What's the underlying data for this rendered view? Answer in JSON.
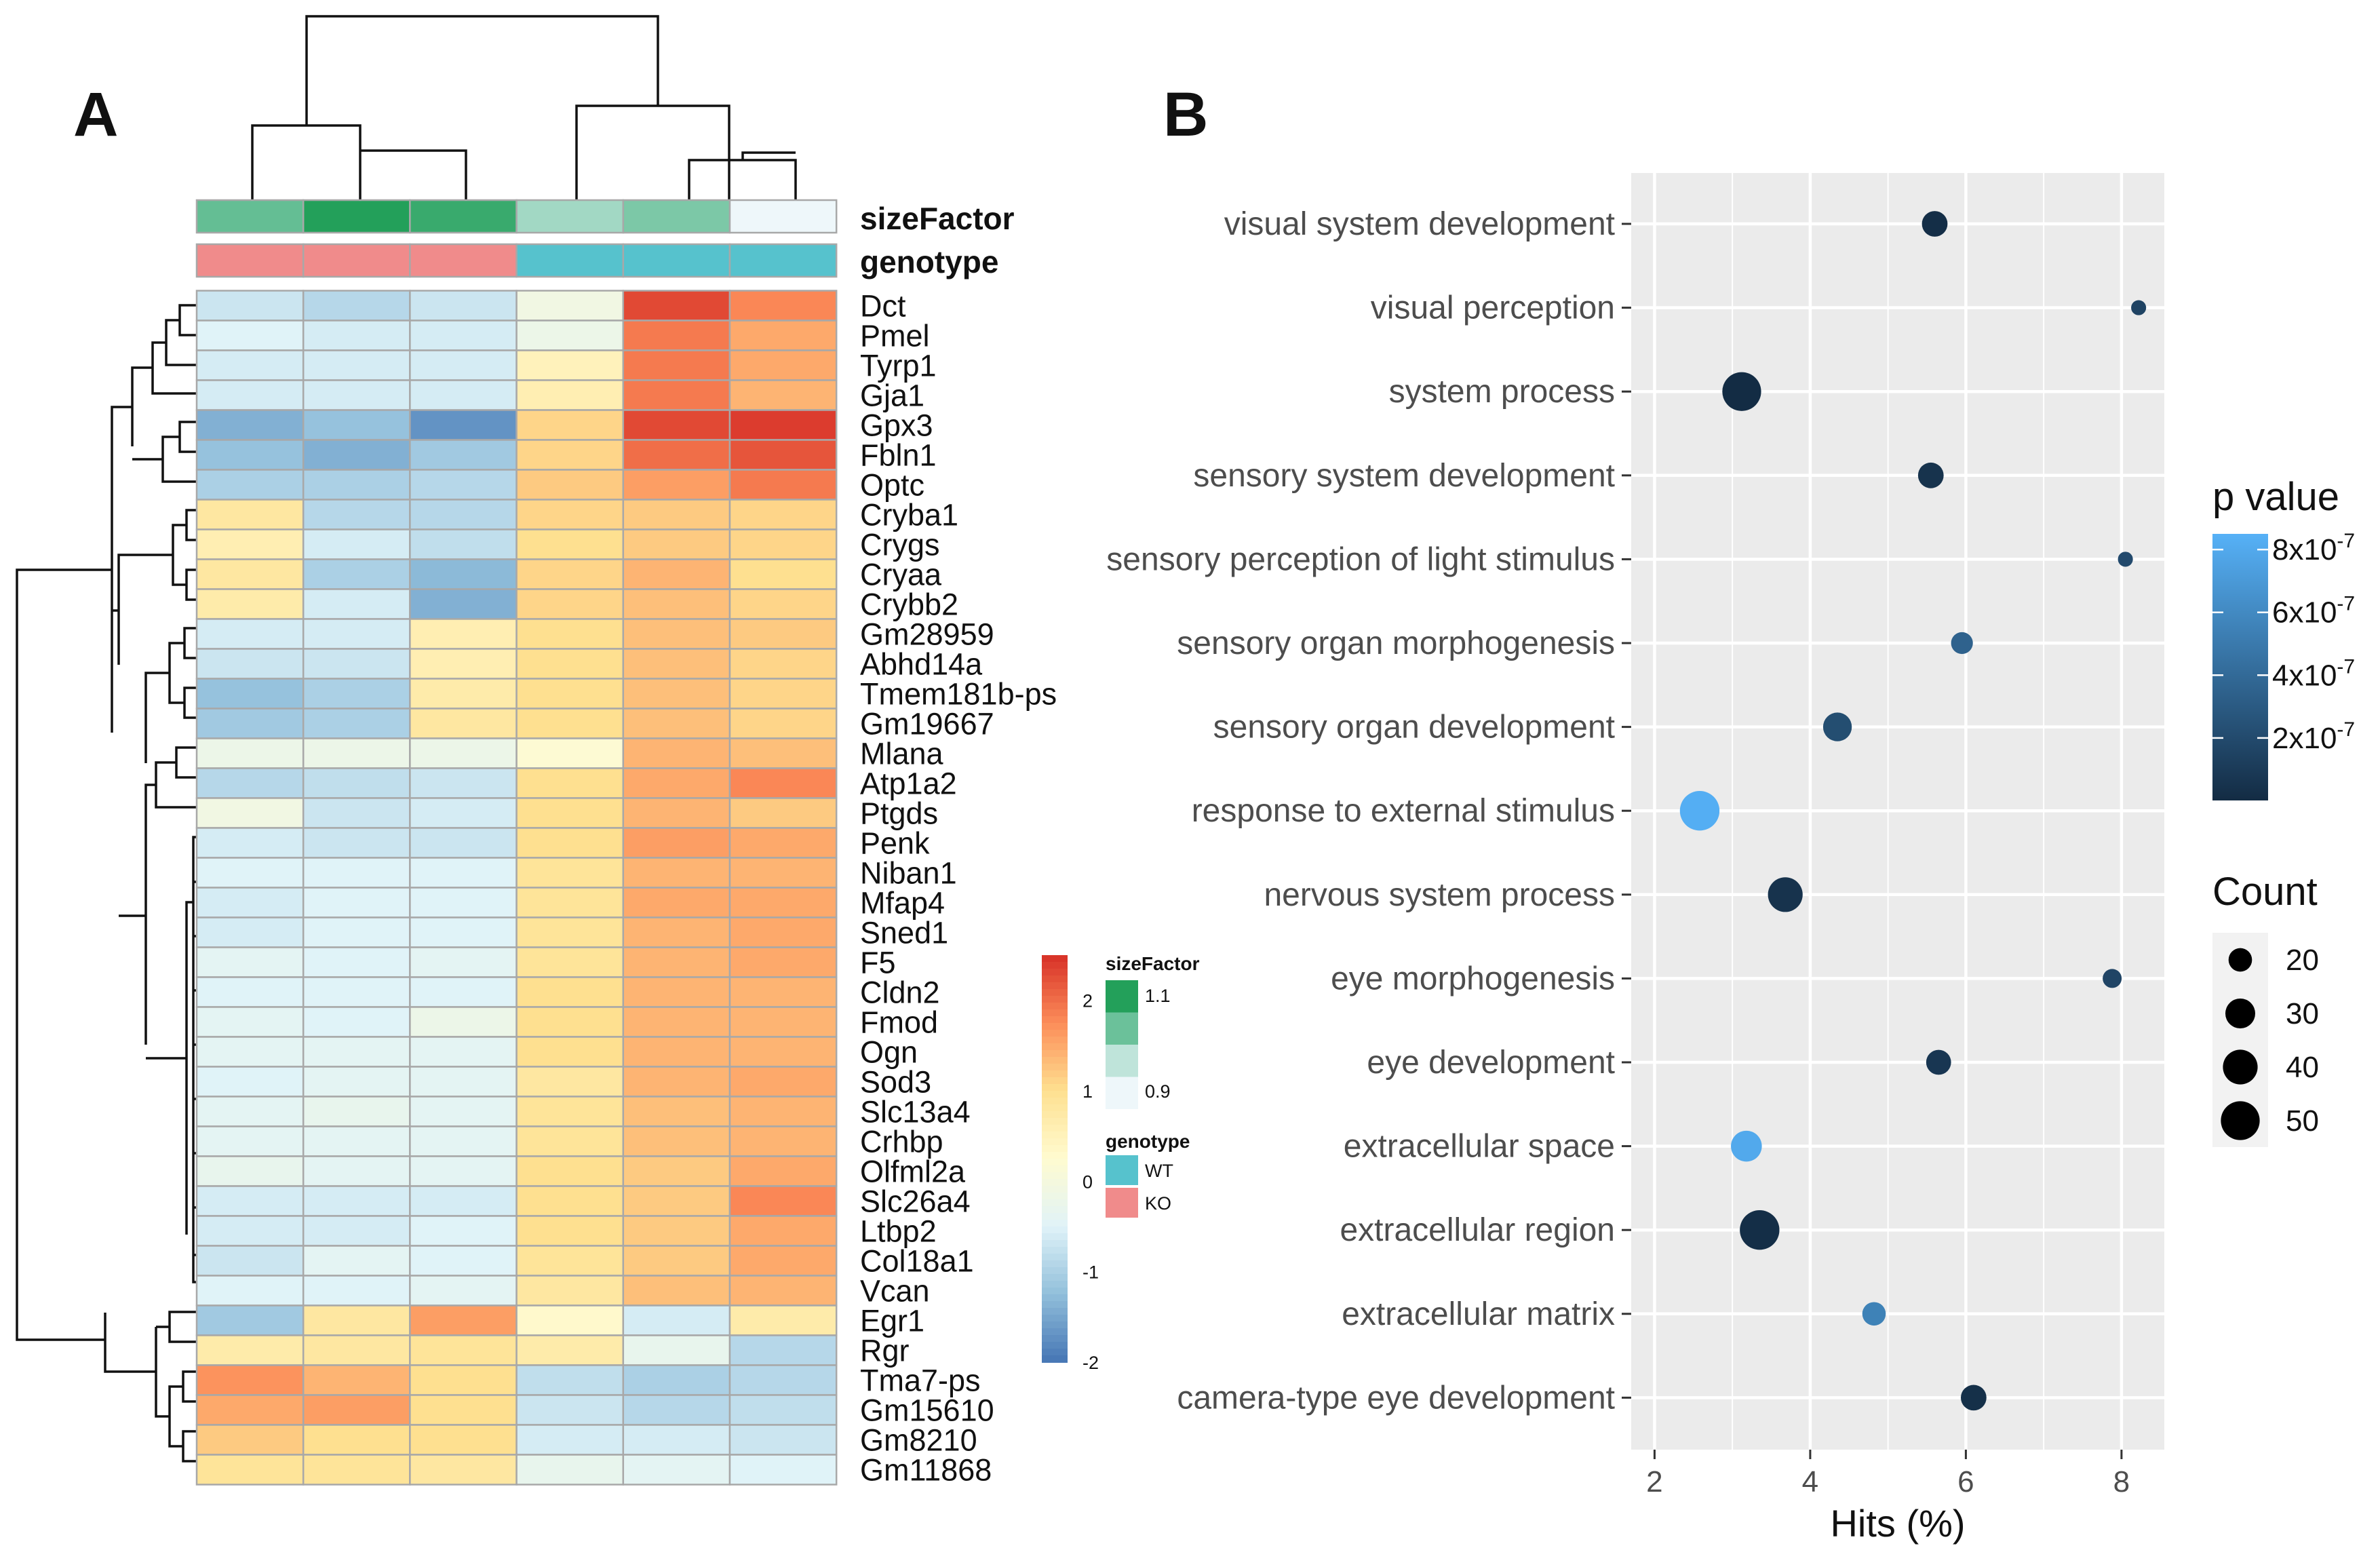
{
  "panels": {
    "a_label": "A",
    "b_label": "B"
  },
  "chart_data": [
    {
      "type": "heatmap",
      "panel": "A",
      "columns": 6,
      "rows": [
        "Dct",
        "Pmel",
        "Tyrp1",
        "Gja1",
        "Gpx3",
        "Fbln1",
        "Optc",
        "Cryba1",
        "Crygs",
        "Cryaa",
        "Crybb2",
        "Gm28959",
        "Abhd14a",
        "Tmem181b-ps",
        "Gm19667",
        "Mlana",
        "Atp1a2",
        "Ptgds",
        "Penk",
        "Niban1",
        "Mfap4",
        "Sned1",
        "F5",
        "Cldn2",
        "Fmod",
        "Ogn",
        "Sod3",
        "Slc13a4",
        "Crhbp",
        "Olfml2a",
        "Slc26a4",
        "Ltbp2",
        "Col18a1",
        "Vcan",
        "Egr1",
        "Rgr",
        "Tma7-ps",
        "Gm15610",
        "Gm8210",
        "Gm11868"
      ],
      "values": [
        [
          -0.7,
          -0.9,
          -0.7,
          -0.1,
          2.3,
          1.8
        ],
        [
          -0.5,
          -0.6,
          -0.6,
          -0.2,
          1.9,
          1.5
        ],
        [
          -0.6,
          -0.6,
          -0.6,
          0.5,
          1.9,
          1.5
        ],
        [
          -0.6,
          -0.6,
          -0.6,
          0.6,
          1.9,
          1.4
        ],
        [
          -1.4,
          -1.2,
          -1.7,
          1.1,
          2.3,
          2.4
        ],
        [
          -1.2,
          -1.4,
          -1.1,
          1.1,
          2.0,
          2.2
        ],
        [
          -1.0,
          -1.0,
          -0.9,
          1.2,
          1.6,
          1.9
        ],
        [
          0.8,
          -0.9,
          -0.9,
          1.1,
          1.2,
          1.1
        ],
        [
          0.6,
          -0.6,
          -0.8,
          1.0,
          1.2,
          1.1
        ],
        [
          0.8,
          -1.0,
          -1.3,
          1.1,
          1.4,
          1.0
        ],
        [
          0.7,
          -0.6,
          -1.4,
          1.1,
          1.3,
          1.1
        ],
        [
          -0.6,
          -0.6,
          0.6,
          1.0,
          1.3,
          1.2
        ],
        [
          -0.7,
          -0.7,
          0.6,
          1.0,
          1.3,
          1.1
        ],
        [
          -1.2,
          -1.0,
          0.7,
          1.0,
          1.3,
          1.1
        ],
        [
          -1.1,
          -1.0,
          0.8,
          1.0,
          1.3,
          1.1
        ],
        [
          -0.2,
          -0.2,
          -0.2,
          0.2,
          1.4,
          1.3
        ],
        [
          -0.9,
          -0.8,
          -0.7,
          1.0,
          1.5,
          1.8
        ],
        [
          -0.1,
          -0.7,
          -0.6,
          1.0,
          1.4,
          1.2
        ],
        [
          -0.6,
          -0.7,
          -0.7,
          1.0,
          1.6,
          1.5
        ],
        [
          -0.5,
          -0.5,
          -0.5,
          0.9,
          1.4,
          1.4
        ],
        [
          -0.6,
          -0.5,
          -0.5,
          0.9,
          1.5,
          1.5
        ],
        [
          -0.6,
          -0.5,
          -0.5,
          0.9,
          1.4,
          1.5
        ],
        [
          -0.4,
          -0.5,
          -0.4,
          0.9,
          1.4,
          1.5
        ],
        [
          -0.5,
          -0.5,
          -0.5,
          1.0,
          1.4,
          1.4
        ],
        [
          -0.4,
          -0.5,
          -0.2,
          1.0,
          1.4,
          1.4
        ],
        [
          -0.4,
          -0.4,
          -0.4,
          1.0,
          1.4,
          1.4
        ],
        [
          -0.5,
          -0.4,
          -0.4,
          0.8,
          1.4,
          1.5
        ],
        [
          -0.4,
          -0.3,
          -0.4,
          0.9,
          1.3,
          1.4
        ],
        [
          -0.4,
          -0.4,
          -0.4,
          0.9,
          1.3,
          1.4
        ],
        [
          -0.3,
          -0.4,
          -0.4,
          1.0,
          1.2,
          1.5
        ],
        [
          -0.6,
          -0.6,
          -0.6,
          1.0,
          1.2,
          1.8
        ],
        [
          -0.6,
          -0.6,
          -0.5,
          1.0,
          1.2,
          1.5
        ],
        [
          -0.7,
          -0.4,
          -0.5,
          0.9,
          1.2,
          1.5
        ],
        [
          -0.5,
          -0.5,
          -0.4,
          0.8,
          1.3,
          1.4
        ],
        [
          -1.1,
          0.8,
          1.6,
          0.3,
          -0.6,
          0.7
        ],
        [
          0.7,
          0.8,
          0.9,
          0.7,
          -0.3,
          -0.9
        ],
        [
          1.7,
          1.4,
          1.0,
          -0.8,
          -1.0,
          -0.9
        ],
        [
          1.5,
          1.6,
          1.0,
          -0.7,
          -0.9,
          -0.8
        ],
        [
          1.2,
          1.0,
          1.0,
          -0.6,
          -0.6,
          -0.7
        ],
        [
          0.9,
          0.9,
          0.8,
          -0.3,
          -0.4,
          -0.5
        ]
      ],
      "annotations": {
        "sizeFactor": {
          "label": "sizeFactor",
          "values": [
            1.04,
            1.1,
            1.08,
            0.99,
            1.02,
            0.9
          ]
        },
        "genotype": {
          "label": "genotype",
          "values": [
            "KO",
            "KO",
            "KO",
            "WT",
            "WT",
            "WT"
          ]
        }
      },
      "color_scale": {
        "min": -2,
        "max": 2.5,
        "colors": [
          "#4575b4",
          "#91bfdb",
          "#e0f3f8",
          "#fffbd0",
          "#fee090",
          "#fc8d59",
          "#d73027"
        ]
      },
      "legend": {
        "ticks": [
          "2",
          "1",
          "0",
          "-1",
          "-2"
        ],
        "tick_values": [
          2,
          1,
          0,
          -1,
          -2
        ],
        "sizeFactor_title": "sizeFactor",
        "sizeFactor_max": "1.1",
        "sizeFactor_min": "0.9",
        "sizeFactor_colors": [
          "#23a05a",
          "#6bc19a",
          "#bfe4da",
          "#eef7fa"
        ],
        "genotype_title": "genotype",
        "genotype_entries": [
          {
            "label": "WT",
            "color": "#56c2cd"
          },
          {
            "label": "KO",
            "color": "#f08b8b"
          }
        ]
      },
      "colors": {
        "ko": "#f08b8b",
        "wt": "#56c2cd",
        "cell_border": "#a8a8a8"
      }
    },
    {
      "type": "scatter",
      "panel": "B",
      "title": "",
      "xlabel": "Hits (%)",
      "ylabel": "",
      "xlim": [
        1.7,
        8.55
      ],
      "xticks": [
        2,
        4,
        6,
        8
      ],
      "xtick_labels": [
        "2",
        "4",
        "6",
        "8"
      ],
      "categories": [
        "visual system development",
        "visual perception",
        "system process",
        "sensory system development",
        "sensory perception of light stimulus",
        "sensory organ morphogenesis",
        "sensory organ development",
        "response to external stimulus",
        "nervous system process",
        "eye morphogenesis",
        "eye development",
        "extracellular space",
        "extracellular region",
        "extracellular matrix",
        "camera-type eye development"
      ],
      "x": [
        5.6,
        8.22,
        3.12,
        5.55,
        8.05,
        5.95,
        4.35,
        2.58,
        3.68,
        7.88,
        5.65,
        3.18,
        3.35,
        4.82,
        6.1
      ],
      "count": [
        23,
        12,
        50,
        23,
        12,
        18,
        28,
        52,
        40,
        15,
        22,
        32,
        52,
        20,
        23
      ],
      "pvalue": [
        2e-08,
        1.5e-07,
        5e-09,
        5e-08,
        2e-07,
        3.5e-07,
        2.2e-07,
        8.3e-07,
        5e-08,
        1.6e-07,
        7e-08,
        8e-07,
        2e-08,
        5.5e-07,
        3e-08
      ],
      "legend_p": {
        "title": "p value",
        "ticks": [
          {
            "value": 8e-07,
            "base": "8x10",
            "exp": "-7"
          },
          {
            "value": 6e-07,
            "base": "6x10",
            "exp": "-7"
          },
          {
            "value": 4e-07,
            "base": "4x10",
            "exp": "-7"
          },
          {
            "value": 2e-07,
            "base": "2x10",
            "exp": "-7"
          }
        ],
        "colors": [
          "#132b43",
          "#56b1f7"
        ],
        "range": [
          1e-09,
          8.5e-07
        ]
      },
      "legend_count": {
        "title": "Count",
        "values": [
          20,
          30,
          40,
          50
        ]
      },
      "colors": {
        "panel_bg": "#ebebeb",
        "grid": "#ffffff",
        "point_low": "#132b43",
        "point_high": "#56b1f7"
      }
    }
  ]
}
